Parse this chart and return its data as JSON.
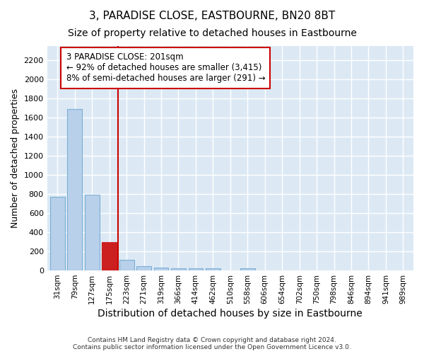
{
  "title": "3, PARADISE CLOSE, EASTBOURNE, BN20 8BT",
  "subtitle": "Size of property relative to detached houses in Eastbourne",
  "xlabel": "Distribution of detached houses by size in Eastbourne",
  "ylabel": "Number of detached properties",
  "footer_line1": "Contains HM Land Registry data © Crown copyright and database right 2024.",
  "footer_line2": "Contains public sector information licensed under the Open Government Licence v3.0.",
  "categories": [
    "31sqm",
    "79sqm",
    "127sqm",
    "175sqm",
    "223sqm",
    "271sqm",
    "319sqm",
    "366sqm",
    "414sqm",
    "462sqm",
    "510sqm",
    "558sqm",
    "606sqm",
    "654sqm",
    "702sqm",
    "750sqm",
    "798sqm",
    "846sqm",
    "894sqm",
    "941sqm",
    "989sqm"
  ],
  "values": [
    770,
    1690,
    795,
    300,
    110,
    45,
    32,
    25,
    22,
    20,
    0,
    20,
    0,
    0,
    0,
    0,
    0,
    0,
    0,
    0,
    0
  ],
  "bar_color": "#b8d0ea",
  "bar_edge_color": "#7aafd4",
  "highlight_bar_index": 3,
  "highlight_bar_color": "#cc2020",
  "highlight_bar_edge_color": "#cc2020",
  "vline_color": "#cc0000",
  "annotation_text": "3 PARADISE CLOSE: 201sqm\n← 92% of detached houses are smaller (3,415)\n8% of semi-detached houses are larger (291) →",
  "annotation_box_color": "#ffffff",
  "annotation_box_edge_color": "#cc0000",
  "ylim": [
    0,
    2350
  ],
  "yticks": [
    0,
    200,
    400,
    600,
    800,
    1000,
    1200,
    1400,
    1600,
    1800,
    2000,
    2200
  ],
  "bg_color": "#dce9f5",
  "grid_color": "#ffffff",
  "title_fontsize": 11,
  "subtitle_fontsize": 10,
  "xlabel_fontsize": 10,
  "ylabel_fontsize": 9,
  "annotation_fontsize": 8.5
}
